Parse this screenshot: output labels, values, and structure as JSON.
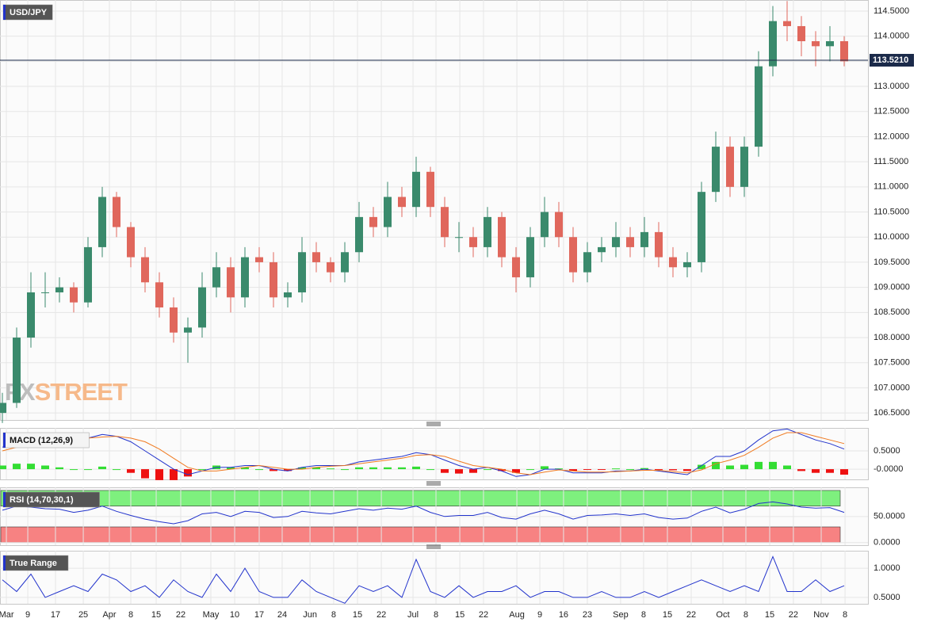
{
  "chart_data": [
    {
      "type": "candlestick",
      "title": "USD/JPY",
      "watermark": [
        "FX",
        "STREET"
      ],
      "up_color": "#3a8a6c",
      "down_color": "#e0675c",
      "grid": true,
      "xlim": [
        -0.167,
        60.667
      ],
      "ylim": [
        106.36,
        114.72
      ],
      "yticks": [
        {
          "value": 106.5,
          "label": "106.5000"
        },
        {
          "value": 107,
          "label": "107.0000"
        },
        {
          "value": 107.5,
          "label": "107.5000"
        },
        {
          "value": 108,
          "label": "108.0000"
        },
        {
          "value": 108.5,
          "label": "108.5000"
        },
        {
          "value": 109,
          "label": "109.0000"
        },
        {
          "value": 109.5,
          "label": "109.5000"
        },
        {
          "value": 110,
          "label": "110.0000"
        },
        {
          "value": 110.5,
          "label": "110.5000"
        },
        {
          "value": 111,
          "label": "111.0000"
        },
        {
          "value": 111.5,
          "label": "111.5000"
        },
        {
          "value": 112,
          "label": "112.0000"
        },
        {
          "value": 112.5,
          "label": "112.5000"
        },
        {
          "value": 113,
          "label": "113.0000"
        },
        {
          "value": 113.5,
          "label": "113.5000"
        },
        {
          "value": 114,
          "label": "114.0000"
        },
        {
          "value": 114.5,
          "label": "114.5000"
        }
      ],
      "last_price": {
        "value": 113.521,
        "label": "113.5210"
      },
      "open": [
        106.5,
        106.7,
        108.0,
        108.9,
        108.9,
        109.0,
        108.7,
        109.8,
        110.8,
        110.2,
        109.6,
        109.1,
        108.6,
        108.1,
        108.2,
        109.0,
        109.4,
        108.8,
        109.6,
        109.5,
        108.8,
        108.9,
        109.7,
        109.5,
        109.3,
        109.7,
        110.4,
        110.2,
        110.8,
        110.6,
        111.3,
        110.6,
        110.0,
        110.0,
        109.8,
        110.4,
        109.6,
        109.2,
        110.0,
        110.5,
        110.0,
        109.3,
        109.7,
        109.8,
        110.0,
        109.8,
        110.1,
        109.6,
        109.4,
        109.5,
        110.9,
        111.8,
        111.0,
        111.8,
        113.4,
        114.3,
        114.2,
        113.9,
        113.8,
        113.9
      ],
      "close": [
        106.7,
        108.0,
        108.9,
        108.9,
        109.0,
        108.7,
        109.8,
        110.8,
        110.2,
        109.6,
        109.1,
        108.6,
        108.1,
        108.2,
        109.0,
        109.4,
        108.8,
        109.6,
        109.5,
        108.8,
        108.9,
        109.7,
        109.5,
        109.3,
        109.7,
        110.4,
        110.2,
        110.8,
        110.6,
        111.3,
        110.6,
        110.0,
        110.0,
        109.8,
        110.4,
        109.6,
        109.2,
        110.0,
        110.5,
        110.0,
        109.3,
        109.7,
        109.8,
        110.0,
        109.8,
        110.1,
        109.6,
        109.4,
        109.5,
        110.9,
        111.8,
        111.0,
        111.8,
        113.4,
        114.3,
        114.2,
        113.9,
        113.8,
        113.9,
        113.5
      ],
      "high": [
        106.9,
        108.2,
        109.3,
        109.3,
        109.2,
        109.1,
        110.0,
        111.0,
        110.9,
        110.3,
        109.8,
        109.3,
        108.8,
        108.4,
        109.3,
        109.7,
        109.6,
        109.8,
        109.8,
        109.7,
        109.1,
        110.0,
        109.9,
        109.6,
        109.9,
        110.7,
        110.6,
        111.1,
        111.0,
        111.6,
        111.4,
        110.8,
        110.3,
        110.2,
        110.6,
        110.5,
        109.8,
        110.2,
        110.8,
        110.7,
        110.2,
        109.9,
        110.0,
        110.3,
        110.2,
        110.4,
        110.3,
        109.8,
        109.7,
        111.1,
        112.1,
        112.0,
        112.0,
        113.7,
        114.6,
        114.7,
        114.4,
        114.1,
        114.2,
        114.0
      ],
      "low": [
        106.3,
        106.6,
        107.8,
        108.6,
        108.7,
        108.5,
        108.6,
        109.6,
        110.0,
        109.4,
        108.9,
        108.4,
        107.9,
        107.5,
        108.0,
        108.8,
        108.5,
        108.6,
        109.3,
        108.6,
        108.6,
        108.7,
        109.3,
        109.1,
        109.1,
        109.5,
        110.0,
        110.0,
        110.4,
        110.4,
        110.4,
        109.8,
        109.7,
        109.6,
        109.6,
        109.4,
        108.9,
        109.0,
        109.8,
        109.8,
        109.1,
        109.1,
        109.5,
        109.6,
        109.6,
        109.6,
        109.4,
        109.2,
        109.2,
        109.3,
        110.7,
        110.8,
        110.8,
        111.6,
        113.2,
        113.9,
        113.6,
        113.4,
        113.5,
        113.4
      ]
    },
    {
      "type": "combo",
      "title": "MACD (12,26,9)",
      "grid": true,
      "xlim": [
        -0.167,
        60.667
      ],
      "ylim": [
        -0.28,
        1.13
      ],
      "yticks": [
        {
          "value": 0.5,
          "label": "0.5000"
        },
        {
          "value": 0,
          "label": "-0.0000"
        }
      ],
      "series": [
        {
          "color": "#2233cc",
          "values": [
            0.6,
            0.75,
            0.85,
            0.9,
            0.9,
            0.85,
            0.85,
            0.95,
            0.9,
            0.75,
            0.5,
            0.25,
            0.0,
            -0.15,
            -0.05,
            0.05,
            0.05,
            0.1,
            0.1,
            0.0,
            -0.05,
            0.05,
            0.1,
            0.1,
            0.1,
            0.2,
            0.25,
            0.3,
            0.35,
            0.45,
            0.4,
            0.25,
            0.1,
            0.0,
            0.05,
            -0.05,
            -0.2,
            -0.15,
            0.0,
            0.0,
            -0.1,
            -0.1,
            -0.1,
            -0.05,
            -0.05,
            0.0,
            -0.05,
            -0.1,
            -0.15,
            0.1,
            0.35,
            0.35,
            0.5,
            0.8,
            1.05,
            1.1,
            0.95,
            0.8,
            0.7,
            0.55
          ]
        },
        {
          "color": "#f07a20",
          "values": [
            0.5,
            0.6,
            0.7,
            0.8,
            0.85,
            0.85,
            0.85,
            0.88,
            0.9,
            0.85,
            0.75,
            0.55,
            0.3,
            0.05,
            -0.05,
            -0.05,
            0.0,
            0.05,
            0.1,
            0.05,
            0.0,
            0.0,
            0.05,
            0.08,
            0.1,
            0.15,
            0.2,
            0.25,
            0.3,
            0.38,
            0.4,
            0.35,
            0.22,
            0.1,
            0.05,
            0.0,
            -0.1,
            -0.15,
            -0.08,
            -0.02,
            -0.05,
            -0.08,
            -0.08,
            -0.07,
            -0.05,
            -0.03,
            -0.03,
            -0.07,
            -0.1,
            -0.02,
            0.15,
            0.25,
            0.38,
            0.6,
            0.85,
            1.0,
            1.0,
            0.9,
            0.8,
            0.7
          ]
        }
      ],
      "histogram": {
        "up_color": "#33dd33",
        "down_color": "#ee1111",
        "values": [
          0.1,
          0.15,
          0.15,
          0.1,
          0.05,
          0,
          0,
          0.07,
          0,
          -0.1,
          -0.25,
          -0.3,
          -0.3,
          -0.2,
          0,
          0.1,
          0.05,
          0.05,
          0,
          -0.05,
          -0.05,
          0.05,
          0.05,
          0.02,
          0,
          0.05,
          0.05,
          0.05,
          0.05,
          0.07,
          0,
          -0.1,
          -0.12,
          -0.1,
          0,
          -0.05,
          -0.1,
          0,
          0.08,
          0.02,
          -0.05,
          -0.02,
          -0.02,
          0.02,
          0,
          0.03,
          -0.02,
          -0.03,
          -0.05,
          0.12,
          0.2,
          0.1,
          0.12,
          0.2,
          0.2,
          0.1,
          -0.05,
          -0.1,
          -0.1,
          -0.15
        ]
      }
    },
    {
      "type": "line",
      "title": "RSI (14,70,30,1)",
      "grid": true,
      "xlim": [
        -0.167,
        60.667
      ],
      "ylim": [
        -5,
        106
      ],
      "yticks": [
        {
          "value": 50,
          "label": "50.0000"
        },
        {
          "value": 0,
          "label": "0.0000"
        }
      ],
      "bands": [
        {
          "range": [
            70,
            100
          ],
          "color": "#7ef07e"
        },
        {
          "range": [
            0,
            30
          ],
          "color": "#f78282"
        }
      ],
      "series": [
        {
          "color": "#2233cc",
          "values": [
            62,
            70,
            68,
            65,
            64,
            58,
            62,
            70,
            60,
            52,
            45,
            40,
            36,
            42,
            55,
            58,
            50,
            60,
            58,
            48,
            50,
            60,
            57,
            55,
            60,
            65,
            62,
            66,
            64,
            70,
            58,
            50,
            52,
            52,
            58,
            48,
            45,
            55,
            62,
            55,
            45,
            52,
            53,
            55,
            52,
            55,
            48,
            45,
            47,
            60,
            68,
            57,
            64,
            75,
            78,
            74,
            68,
            66,
            67,
            58
          ]
        }
      ]
    },
    {
      "type": "line",
      "title": "True Range",
      "grid": true,
      "xlim": [
        -0.167,
        60.667
      ],
      "ylim": [
        0.39,
        1.3
      ],
      "yticks": [
        {
          "value": 1,
          "label": "1.0000"
        },
        {
          "value": 0.5,
          "label": "0.5000"
        }
      ],
      "series": [
        {
          "color": "#2233cc",
          "values": [
            0.8,
            0.6,
            0.9,
            0.5,
            0.6,
            0.7,
            0.6,
            0.9,
            0.8,
            0.6,
            0.7,
            0.5,
            0.8,
            0.6,
            0.5,
            0.9,
            0.6,
            1.0,
            0.6,
            0.5,
            0.5,
            0.8,
            0.6,
            0.5,
            0.4,
            0.7,
            0.6,
            0.7,
            0.5,
            1.15,
            0.6,
            0.5,
            0.7,
            0.5,
            0.6,
            0.6,
            0.7,
            0.5,
            0.6,
            0.6,
            0.5,
            0.5,
            0.6,
            0.5,
            0.5,
            0.6,
            0.5,
            0.6,
            0.7,
            0.8,
            0.7,
            0.6,
            0.7,
            0.6,
            1.2,
            0.6,
            0.6,
            0.8,
            0.6,
            0.7
          ]
        }
      ],
      "xticks": [
        {
          "value": 0.28,
          "label": "Mar"
        },
        {
          "value": 1.78,
          "label": "9"
        },
        {
          "value": 3.72,
          "label": "17"
        },
        {
          "value": 5.67,
          "label": "25"
        },
        {
          "value": 7.5,
          "label": "Apr"
        },
        {
          "value": 9.0,
          "label": "8"
        },
        {
          "value": 10.78,
          "label": "15"
        },
        {
          "value": 12.5,
          "label": "22"
        },
        {
          "value": 14.61,
          "label": "May"
        },
        {
          "value": 16.28,
          "label": "10"
        },
        {
          "value": 18.0,
          "label": "17"
        },
        {
          "value": 19.61,
          "label": "24"
        },
        {
          "value": 21.56,
          "label": "Jun"
        },
        {
          "value": 23.22,
          "label": "8"
        },
        {
          "value": 24.89,
          "label": "15"
        },
        {
          "value": 26.56,
          "label": "22"
        },
        {
          "value": 28.78,
          "label": "Jul"
        },
        {
          "value": 30.39,
          "label": "8"
        },
        {
          "value": 32.06,
          "label": "15"
        },
        {
          "value": 33.72,
          "label": "22"
        },
        {
          "value": 36.06,
          "label": "Aug"
        },
        {
          "value": 37.67,
          "label": "9"
        },
        {
          "value": 39.33,
          "label": "16"
        },
        {
          "value": 41.0,
          "label": "23"
        },
        {
          "value": 43.33,
          "label": "Sep"
        },
        {
          "value": 44.94,
          "label": "8"
        },
        {
          "value": 46.61,
          "label": "15"
        },
        {
          "value": 48.28,
          "label": "22"
        },
        {
          "value": 50.5,
          "label": "Oct"
        },
        {
          "value": 52.11,
          "label": "8"
        },
        {
          "value": 53.78,
          "label": "15"
        },
        {
          "value": 55.44,
          "label": "22"
        },
        {
          "value": 57.39,
          "label": "Nov"
        },
        {
          "value": 59.06,
          "label": "8"
        }
      ]
    }
  ]
}
